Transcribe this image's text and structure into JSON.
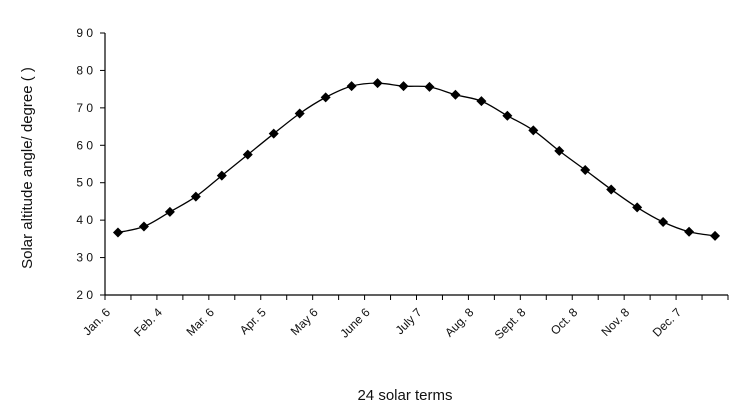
{
  "chart_data": {
    "type": "line",
    "title": "",
    "xlabel": "24 solar terms",
    "ylabel": "Solar altitude angle/ degree ( )",
    "ylim": [
      20,
      90
    ],
    "yticks": [
      "2 0",
      "3 0",
      "4 0",
      "5 0",
      "6 0",
      "7 0",
      "8 0",
      "9 0"
    ],
    "xtick_labels": [
      "Jan. 6",
      "Feb. 4",
      "Mar. 6",
      "Apr. 5",
      "May 6",
      "June 6",
      "July 7",
      "Aug. 8",
      "Sept. 8",
      "Oct. 8",
      "Nov. 8",
      "Dec. 7"
    ],
    "grid": false,
    "legend": "none",
    "marker": "diamond",
    "series": [
      {
        "values": [
          36.7,
          38.3,
          42.2,
          46.3,
          51.9,
          57.5,
          63.1,
          68.5,
          72.8,
          75.8,
          76.6,
          75.8,
          75.6,
          73.5,
          71.8,
          67.9,
          64.0,
          58.5,
          53.4,
          48.2,
          43.4,
          39.5,
          36.9,
          35.8
        ]
      }
    ],
    "colors": {
      "line": "#000000",
      "marker": "#000000",
      "axis": "#000000"
    }
  }
}
